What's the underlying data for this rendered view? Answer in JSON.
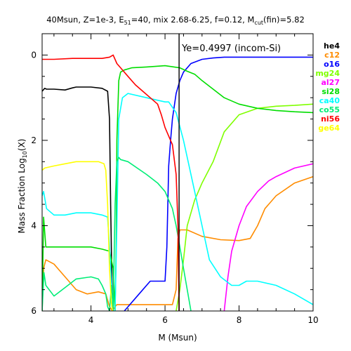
{
  "chart_data": {
    "type": "line",
    "title": "40Msun, Z=1e-3, E",
    "title_sub": "51",
    "title_mid": "=40, mix 2.68-6.25, f=0.12, M",
    "title_sub2": "cut",
    "title_end": "(fin)=5.82",
    "xlabel": "M (Msun)",
    "ylabel": "Mass Fraction Log",
    "ylabel_sub": "10",
    "ylabel_end": "(X)",
    "xlim": [
      2.68,
      10
    ],
    "ylim": [
      -6,
      0.5
    ],
    "y_inverted_labels": true,
    "xticks": [
      4,
      6,
      8,
      10
    ],
    "xtick_labels": [
      "4",
      "6",
      "8",
      "10"
    ],
    "yticks": [
      0,
      -2,
      -4,
      -6
    ],
    "ytick_labels": [
      "0",
      "2",
      "4",
      "6"
    ],
    "annotation": {
      "text": "Ye=0.4997 (incom-Si)",
      "x": 6.38
    },
    "vline_x": 6.38,
    "legend_position": "right-outside",
    "series": [
      {
        "name": "he4",
        "color": "#000000",
        "x": [
          2.68,
          2.75,
          2.8,
          3.0,
          3.3,
          3.5,
          3.6,
          4.0,
          4.3,
          4.45,
          4.5,
          4.53,
          4.56,
          4.58,
          4.6,
          4.62
        ],
        "y": [
          -0.85,
          -0.78,
          -0.8,
          -0.8,
          -0.82,
          -0.77,
          -0.75,
          -0.75,
          -0.78,
          -0.85,
          -1.5,
          -3.5,
          -5.0,
          -5.7,
          -6.0,
          -6.0
        ]
      },
      {
        "name": "c12",
        "color": "#ff8c00",
        "x": [
          2.68,
          2.72,
          2.78,
          3.0,
          3.3,
          3.6,
          3.9,
          4.2,
          4.4,
          4.5,
          4.58,
          4.65,
          4.7,
          4.75,
          4.8,
          5.0,
          5.5,
          6.0,
          6.2,
          6.3,
          6.35,
          6.4,
          6.6,
          7.0,
          7.5,
          8.0,
          8.3,
          8.5,
          8.7,
          9.0,
          9.5,
          10.0
        ],
        "y": [
          -6.0,
          -5.0,
          -4.8,
          -4.9,
          -5.2,
          -5.5,
          -5.6,
          -5.55,
          -5.6,
          -5.9,
          -6.0,
          -5.9,
          -5.85,
          -5.85,
          -5.85,
          -5.85,
          -5.85,
          -5.85,
          -5.85,
          -5.5,
          -4.3,
          -4.1,
          -4.1,
          -4.25,
          -4.33,
          -4.35,
          -4.3,
          -4.0,
          -3.6,
          -3.3,
          -3.0,
          -2.85
        ]
      },
      {
        "name": "o16",
        "color": "#0000ff",
        "x": [
          4.9,
          5.3,
          5.6,
          6.0,
          6.05,
          6.1,
          6.15,
          6.2,
          6.3,
          6.4,
          6.5,
          6.7,
          7.0,
          7.3,
          7.6,
          8.0,
          9.0,
          10.0
        ],
        "y": [
          -6.0,
          -5.6,
          -5.3,
          -5.3,
          -4.5,
          -2.6,
          -2.0,
          -1.5,
          -0.9,
          -0.6,
          -0.4,
          -0.2,
          -0.1,
          -0.07,
          -0.05,
          -0.05,
          -0.05,
          -0.05
        ]
      },
      {
        "name": "mg24",
        "color": "#7fff00",
        "x": [
          6.3,
          6.4,
          6.5,
          6.6,
          6.8,
          7.0,
          7.3,
          7.6,
          8.0,
          8.5,
          9.0,
          9.5,
          10.0
        ],
        "y": [
          -6.0,
          -5.5,
          -4.8,
          -4.0,
          -3.4,
          -3.0,
          -2.5,
          -1.8,
          -1.4,
          -1.25,
          -1.2,
          -1.18,
          -1.15
        ]
      },
      {
        "name": "al27",
        "color": "#ff00ff",
        "x": [
          7.6,
          7.7,
          7.8,
          8.0,
          8.2,
          8.5,
          8.8,
          9.0,
          9.5,
          10.0
        ],
        "y": [
          -6.0,
          -5.2,
          -4.6,
          -4.0,
          -3.55,
          -3.2,
          -2.95,
          -2.85,
          -2.65,
          -2.55
        ]
      },
      {
        "name": "si28",
        "color": "#00dd00",
        "x": [
          2.68,
          2.72,
          2.78,
          3.0,
          3.4,
          3.7,
          4.0,
          4.3,
          4.5,
          4.6,
          4.65,
          4.68,
          4.7,
          4.75,
          4.8,
          4.9,
          5.1,
          5.5,
          6.0,
          6.4,
          6.6,
          6.8,
          7.0,
          7.3,
          7.6,
          8.0,
          8.5,
          9.0,
          9.5,
          10.0
        ],
        "y": [
          -6.0,
          -3.8,
          -4.5,
          -4.5,
          -4.5,
          -4.5,
          -4.5,
          -4.55,
          -4.6,
          -5.0,
          -6.0,
          -4.5,
          -2.0,
          -0.6,
          -0.4,
          -0.35,
          -0.3,
          -0.28,
          -0.25,
          -0.3,
          -0.38,
          -0.45,
          -0.6,
          -0.8,
          -1.0,
          -1.15,
          -1.25,
          -1.3,
          -1.33,
          -1.35
        ]
      },
      {
        "name": "ca40",
        "color": "#00ffff",
        "x": [
          2.68,
          2.72,
          2.8,
          3.0,
          3.3,
          3.6,
          4.0,
          4.3,
          4.45,
          4.5,
          4.6,
          4.65,
          4.7,
          4.75,
          4.85,
          5.0,
          5.5,
          6.0,
          6.1,
          6.3,
          6.5,
          6.8,
          7.0,
          7.2,
          7.5,
          7.8,
          8.0,
          8.2,
          8.5,
          9.0,
          9.5,
          10.0
        ],
        "y": [
          -3.3,
          -3.2,
          -3.6,
          -3.75,
          -3.75,
          -3.7,
          -3.7,
          -3.75,
          -3.8,
          -4.5,
          -6.0,
          -6.0,
          -4.0,
          -1.5,
          -1.0,
          -0.9,
          -1.0,
          -1.1,
          -1.1,
          -1.35,
          -2.0,
          -3.2,
          -4.0,
          -4.8,
          -5.2,
          -5.4,
          -5.4,
          -5.3,
          -5.3,
          -5.4,
          -5.6,
          -5.85
        ]
      },
      {
        "name": "co55",
        "color": "#00ee77",
        "x": [
          2.68,
          2.73,
          2.78,
          3.0,
          3.3,
          3.6,
          4.0,
          4.2,
          4.3,
          4.4,
          4.45,
          4.5,
          4.55,
          4.58,
          4.6,
          4.65,
          4.7,
          4.75,
          4.8,
          5.0,
          5.5,
          5.8,
          6.0,
          6.2,
          6.3,
          6.4,
          6.5,
          6.6,
          6.7
        ],
        "y": [
          -6.0,
          -5.1,
          -5.4,
          -5.65,
          -5.45,
          -5.25,
          -5.2,
          -5.25,
          -5.4,
          -5.6,
          -5.9,
          -6.0,
          -5.4,
          -5.7,
          -6.0,
          -3.5,
          -2.5,
          -2.4,
          -2.45,
          -2.5,
          -2.8,
          -3.0,
          -3.2,
          -3.6,
          -4.0,
          -4.5,
          -5.0,
          -5.5,
          -6.0
        ]
      },
      {
        "name": "ni56",
        "color": "#ff0000",
        "x": [
          2.68,
          3.0,
          3.5,
          4.0,
          4.3,
          4.5,
          4.6,
          4.7,
          4.8,
          5.0,
          5.2,
          5.4,
          5.6,
          5.8,
          5.9,
          6.0,
          6.1,
          6.2,
          6.3,
          6.35,
          6.38
        ],
        "y": [
          -0.1,
          -0.1,
          -0.08,
          -0.08,
          -0.08,
          -0.05,
          0.0,
          -0.2,
          -0.3,
          -0.5,
          -0.7,
          -0.85,
          -1.0,
          -1.15,
          -1.4,
          -1.7,
          -1.9,
          -2.1,
          -2.8,
          -4.0,
          -6.0
        ]
      },
      {
        "name": "ge64",
        "color": "#ffff00",
        "x": [
          2.68,
          2.75,
          3.0,
          3.3,
          3.6,
          3.9,
          4.2,
          4.35,
          4.4,
          4.45,
          4.5,
          4.55,
          4.58,
          4.6
        ],
        "y": [
          -2.7,
          -2.65,
          -2.6,
          -2.55,
          -2.5,
          -2.5,
          -2.5,
          -2.55,
          -2.7,
          -3.5,
          -5.0,
          -5.8,
          -6.0,
          -6.0
        ]
      }
    ]
  }
}
